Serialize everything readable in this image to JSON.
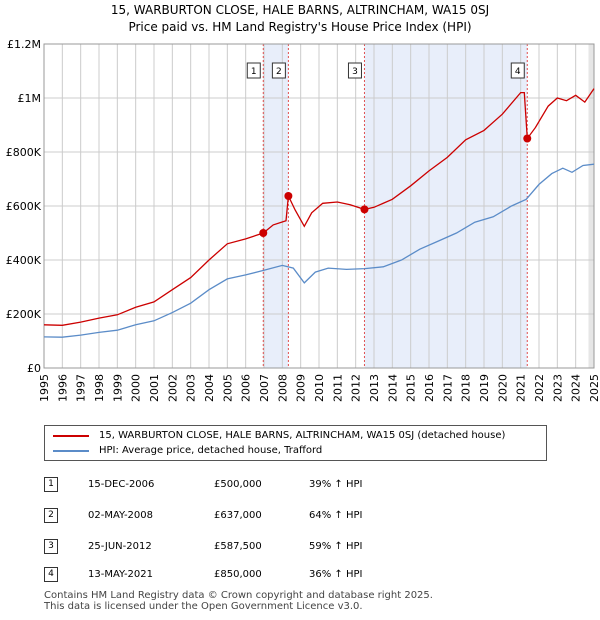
{
  "colors": {
    "property": "#cc0000",
    "hpi": "#5b8cc8",
    "shade": "#e8eefa",
    "grid": "#cccccc",
    "vline": "#e05050"
  },
  "chart_data": {
    "type": "line",
    "title": "15, WARBURTON CLOSE, HALE BARNS, ALTRINCHAM, WA15 0SJ",
    "subtitle": "Price paid vs. HM Land Registry's House Price Index (HPI)",
    "xlim": [
      1995,
      2025
    ],
    "ylim": [
      0,
      1200000
    ],
    "x_ticks": [
      1995,
      1996,
      1997,
      1998,
      1999,
      2000,
      2001,
      2002,
      2003,
      2004,
      2005,
      2006,
      2007,
      2008,
      2009,
      2010,
      2011,
      2012,
      2013,
      2014,
      2015,
      2016,
      2017,
      2018,
      2019,
      2020,
      2021,
      2022,
      2023,
      2024,
      2025
    ],
    "y_ticks": [
      0,
      200000,
      400000,
      600000,
      800000,
      1000000,
      1200000
    ],
    "y_tick_labels": [
      "£0",
      "£200K",
      "£400K",
      "£600K",
      "£800K",
      "£1M",
      "£1.2M"
    ],
    "grid": true,
    "shaded_ranges": [
      [
        2006.96,
        2008.33
      ],
      [
        2012.48,
        2021.36
      ]
    ],
    "series": [
      {
        "name": "15, WARBURTON CLOSE, HALE BARNS, ALTRINCHAM, WA15 0SJ (detached house)",
        "color": "#cc0000",
        "points": [
          [
            1995.0,
            160000
          ],
          [
            1996.0,
            158000
          ],
          [
            1997.0,
            170000
          ],
          [
            1998.0,
            185000
          ],
          [
            1999.0,
            197000
          ],
          [
            2000.0,
            225000
          ],
          [
            2001.0,
            245000
          ],
          [
            2002.0,
            290000
          ],
          [
            2003.0,
            335000
          ],
          [
            2004.0,
            400000
          ],
          [
            2005.0,
            460000
          ],
          [
            2006.0,
            478000
          ],
          [
            2006.96,
            500000
          ],
          [
            2007.5,
            530000
          ],
          [
            2008.2,
            545000
          ],
          [
            2008.33,
            637000
          ],
          [
            2008.7,
            585000
          ],
          [
            2009.2,
            525000
          ],
          [
            2009.6,
            575000
          ],
          [
            2010.2,
            610000
          ],
          [
            2011.0,
            615000
          ],
          [
            2011.7,
            605000
          ],
          [
            2012.48,
            587500
          ],
          [
            2013.0,
            595000
          ],
          [
            2014.0,
            625000
          ],
          [
            2015.0,
            675000
          ],
          [
            2016.0,
            730000
          ],
          [
            2017.0,
            780000
          ],
          [
            2018.0,
            845000
          ],
          [
            2019.0,
            880000
          ],
          [
            2020.0,
            940000
          ],
          [
            2021.0,
            1020000
          ],
          [
            2021.2,
            1020000
          ],
          [
            2021.36,
            850000
          ],
          [
            2021.8,
            890000
          ],
          [
            2022.5,
            970000
          ],
          [
            2023.0,
            1000000
          ],
          [
            2023.5,
            990000
          ],
          [
            2024.0,
            1010000
          ],
          [
            2024.5,
            985000
          ],
          [
            2025.0,
            1035000
          ]
        ]
      },
      {
        "name": "HPI: Average price, detached house, Trafford",
        "color": "#5b8cc8",
        "points": [
          [
            1995.0,
            115000
          ],
          [
            1996.0,
            114000
          ],
          [
            1997.0,
            122000
          ],
          [
            1998.0,
            132000
          ],
          [
            1999.0,
            140000
          ],
          [
            2000.0,
            160000
          ],
          [
            2001.0,
            175000
          ],
          [
            2002.0,
            205000
          ],
          [
            2003.0,
            240000
          ],
          [
            2004.0,
            290000
          ],
          [
            2005.0,
            330000
          ],
          [
            2006.0,
            345000
          ],
          [
            2007.0,
            362000
          ],
          [
            2008.0,
            380000
          ],
          [
            2008.6,
            370000
          ],
          [
            2009.2,
            315000
          ],
          [
            2009.8,
            355000
          ],
          [
            2010.5,
            370000
          ],
          [
            2011.5,
            365000
          ],
          [
            2012.5,
            368000
          ],
          [
            2013.5,
            375000
          ],
          [
            2014.5,
            400000
          ],
          [
            2015.5,
            440000
          ],
          [
            2016.5,
            470000
          ],
          [
            2017.5,
            500000
          ],
          [
            2018.5,
            540000
          ],
          [
            2019.5,
            560000
          ],
          [
            2020.5,
            600000
          ],
          [
            2021.3,
            625000
          ],
          [
            2022.0,
            680000
          ],
          [
            2022.7,
            720000
          ],
          [
            2023.3,
            740000
          ],
          [
            2023.8,
            725000
          ],
          [
            2024.4,
            750000
          ],
          [
            2025.0,
            755000
          ]
        ]
      }
    ],
    "sales": [
      {
        "label": "1",
        "x": 2006.96,
        "y": 500000
      },
      {
        "label": "2",
        "x": 2008.33,
        "y": 637000
      },
      {
        "label": "3",
        "x": 2012.48,
        "y": 587500
      },
      {
        "label": "4",
        "x": 2021.36,
        "y": 850000
      }
    ]
  },
  "legend": [
    {
      "label": "15, WARBURTON CLOSE, HALE BARNS, ALTRINCHAM, WA15 0SJ (detached house)",
      "color": "#cc0000"
    },
    {
      "label": "HPI: Average price, detached house, Trafford",
      "color": "#5b8cc8"
    }
  ],
  "sales_table": [
    {
      "num": "1",
      "date": "15-DEC-2006",
      "price": "£500,000",
      "hpi": "39% ↑ HPI"
    },
    {
      "num": "2",
      "date": "02-MAY-2008",
      "price": "£637,000",
      "hpi": "64% ↑ HPI"
    },
    {
      "num": "3",
      "date": "25-JUN-2012",
      "price": "£587,500",
      "hpi": "59% ↑ HPI"
    },
    {
      "num": "4",
      "date": "13-MAY-2021",
      "price": "£850,000",
      "hpi": "36% ↑ HPI"
    }
  ],
  "footer": {
    "line1": "Contains HM Land Registry data © Crown copyright and database right 2025.",
    "line2": "This data is licensed under the Open Government Licence v3.0."
  }
}
